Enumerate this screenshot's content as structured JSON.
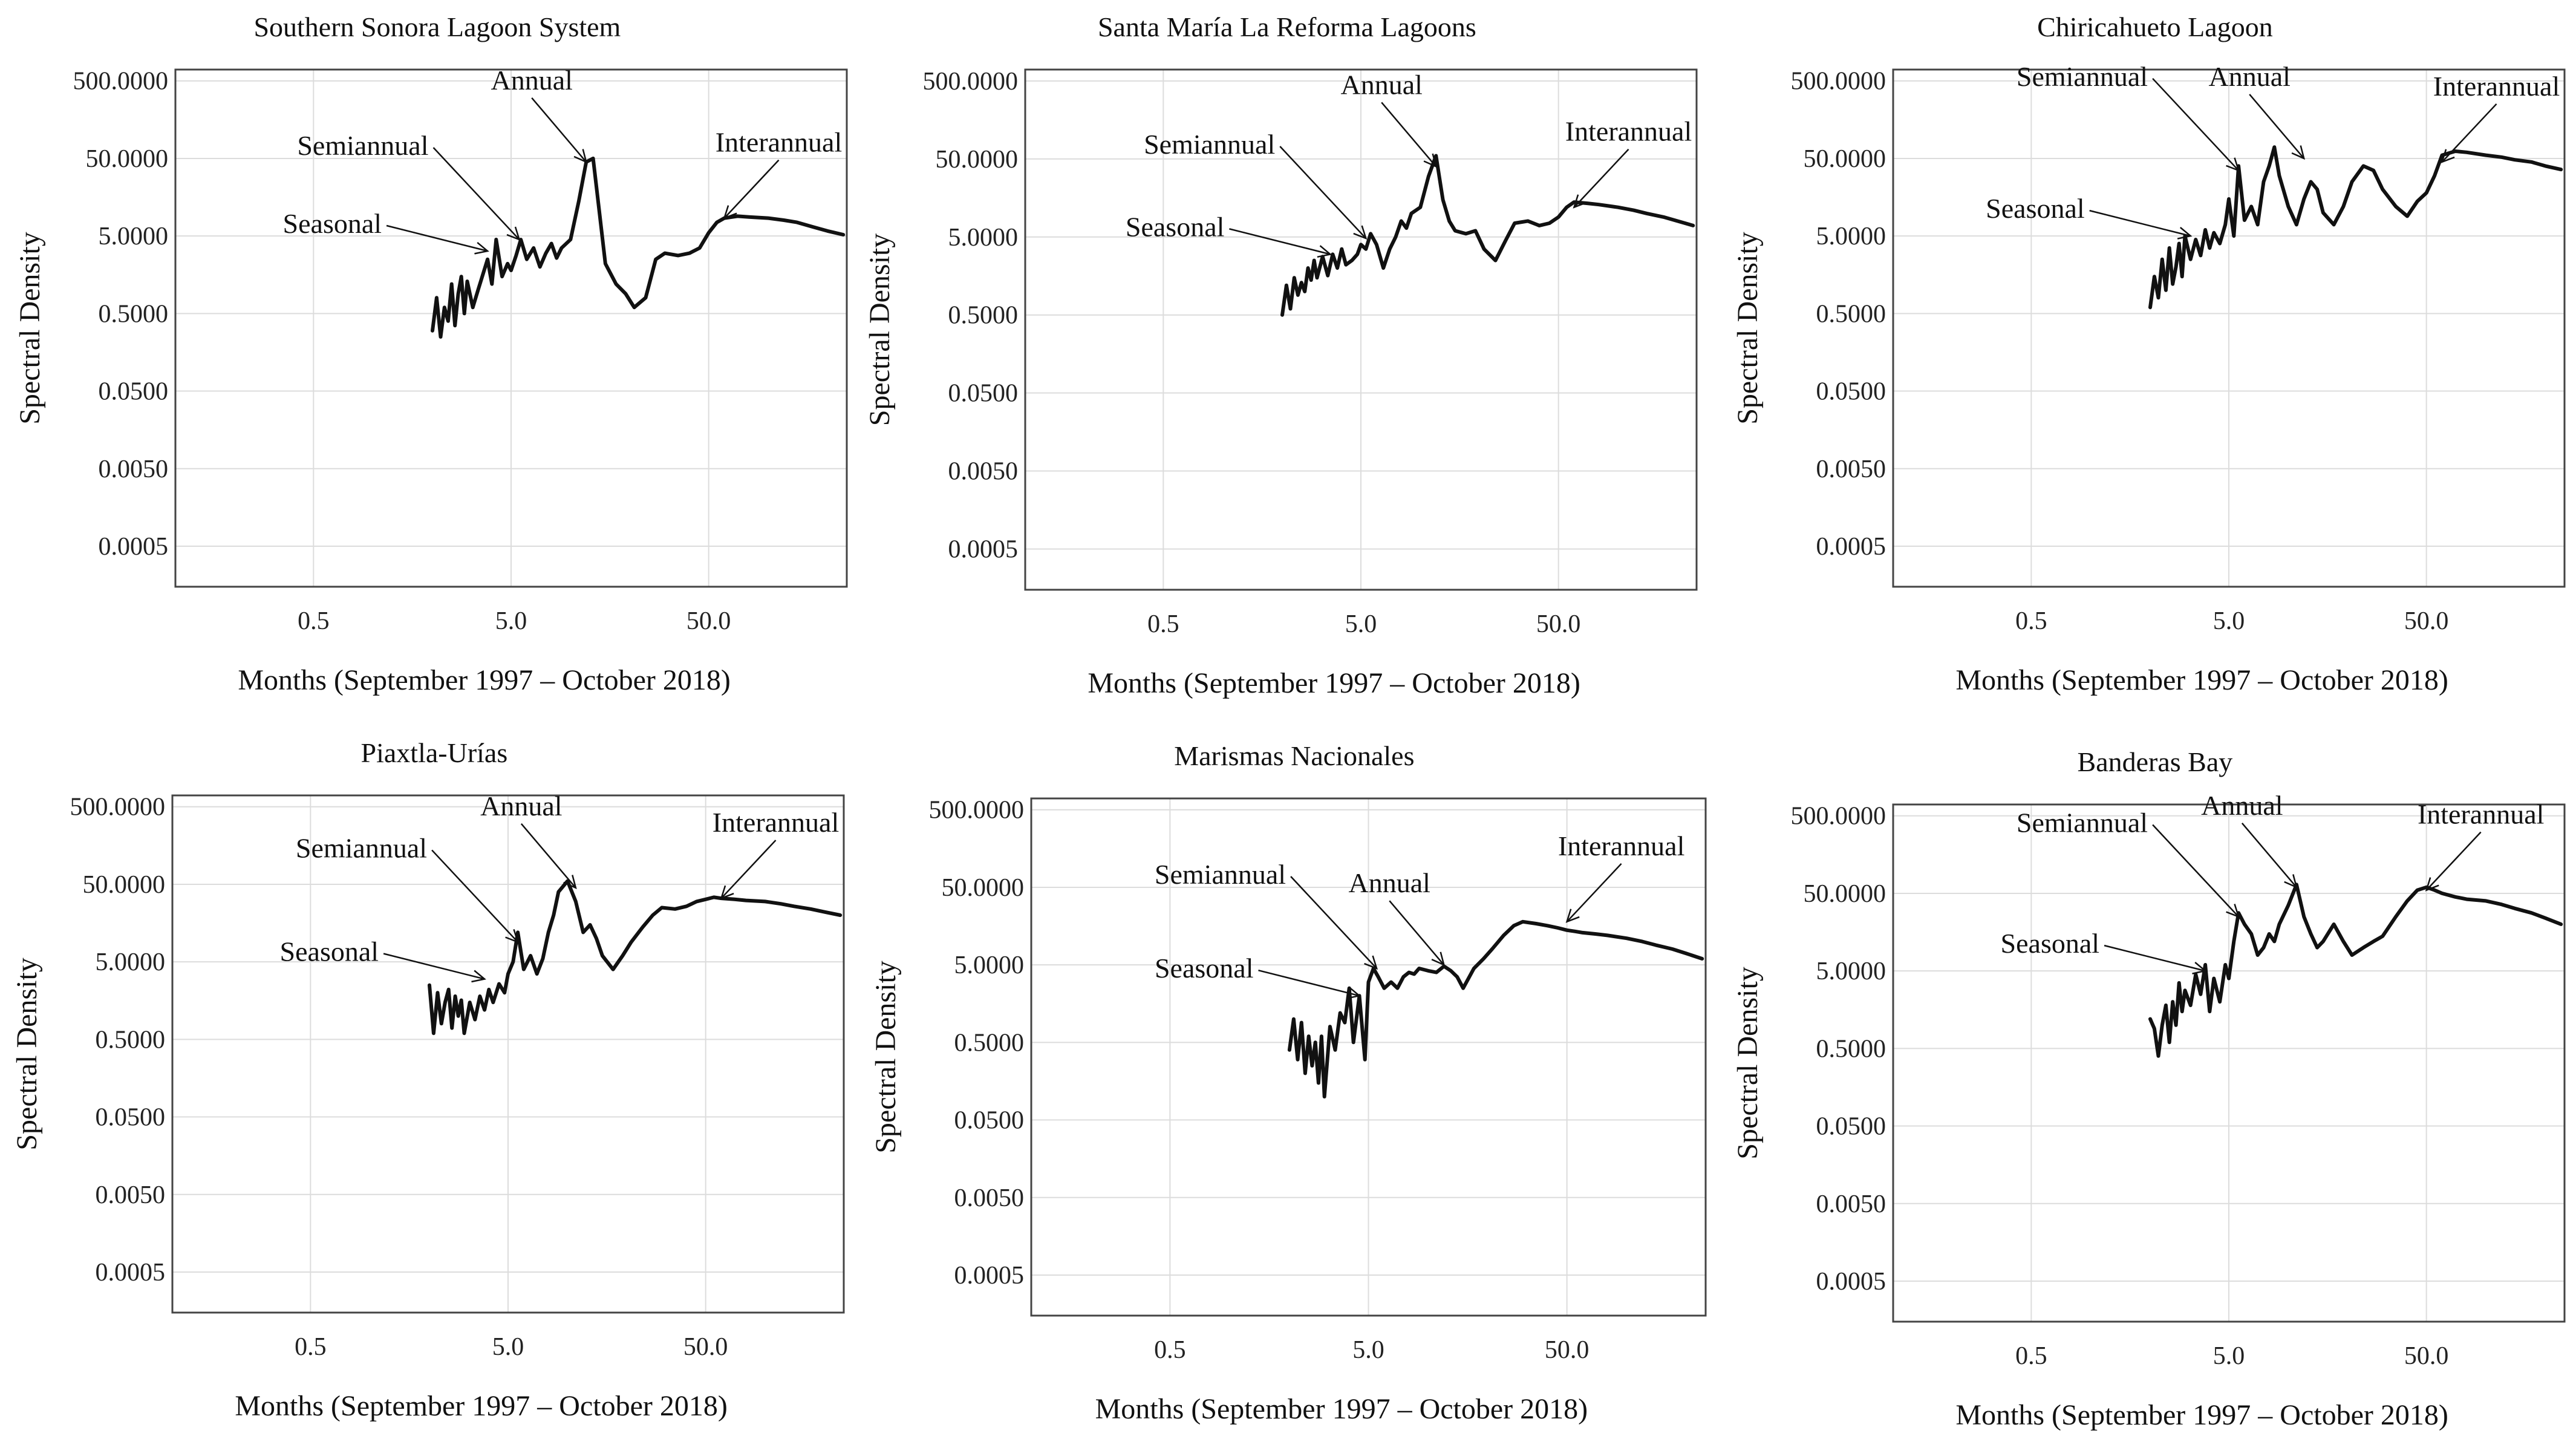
{
  "chart_data": [
    {
      "type": "line",
      "title": "Southern Sonora Lagoon System",
      "xlabel": "Months (September 1997 – October 2018)",
      "ylabel": "Spectral Density",
      "xscale": "log",
      "yscale": "log",
      "xlim": [
        0.1,
        250
      ],
      "ylim": [
        0.00015,
        700
      ],
      "xticks": [
        0.5,
        5.0,
        50.0
      ],
      "xtick_labels": [
        "0.5",
        "5.0",
        "50.0"
      ],
      "yticks": [
        500,
        50,
        5,
        0.5,
        0.05,
        0.005,
        0.0005
      ],
      "ytick_labels": [
        "500.0000",
        "50.0000",
        "5.0000",
        "0.5000",
        "0.0500",
        "0.0050",
        "0.0005"
      ],
      "grid": true,
      "series": [
        {
          "name": "Spectral density",
          "x": [
            2.0,
            2.1,
            2.2,
            2.3,
            2.4,
            2.5,
            2.6,
            2.7,
            2.8,
            2.9,
            3.0,
            3.2,
            3.4,
            3.6,
            3.8,
            4.0,
            4.2,
            4.5,
            4.8,
            5.0,
            5.3,
            5.6,
            6.0,
            6.5,
            7.0,
            7.5,
            8.0,
            8.5,
            9.0,
            10.0,
            11.0,
            12.0,
            13.0,
            14.0,
            15.0,
            17.0,
            19.0,
            21.0,
            24.0,
            27.0,
            30.0,
            35.0,
            40.0,
            45.0,
            50.0,
            55.0,
            60.0,
            70.0,
            80.0,
            100.0,
            120.0,
            140.0,
            170.0,
            200.0,
            240.0
          ],
          "y": [
            0.3,
            0.8,
            0.25,
            0.6,
            0.4,
            1.2,
            0.35,
            0.9,
            1.5,
            0.5,
            1.3,
            0.6,
            1.0,
            1.6,
            2.5,
            1.2,
            4.5,
            1.5,
            2.2,
            1.8,
            2.8,
            4.5,
            2.5,
            3.5,
            2.0,
            3.0,
            4.0,
            2.6,
            3.5,
            4.5,
            14,
            45,
            50,
            10,
            2.2,
            1.2,
            0.9,
            0.6,
            0.8,
            2.5,
            3.0,
            2.8,
            3.0,
            3.5,
            5.5,
            7.5,
            8.5,
            9.0,
            8.8,
            8.5,
            8.0,
            7.5,
            6.5,
            5.8,
            5.2
          ]
        }
      ],
      "annotations": [
        {
          "text": "Seasonal",
          "x": 3.8,
          "y": 3.2
        },
        {
          "text": "Semiannual",
          "x": 5.5,
          "y": 4.5
        },
        {
          "text": "Annual",
          "x": 12.0,
          "y": 45
        },
        {
          "text": "Interannual",
          "x": 60.0,
          "y": 8.5
        }
      ]
    },
    {
      "type": "line",
      "title": "Santa María La Reforma Lagoons",
      "xlabel": "Months (September 1997 – October 2018)",
      "ylabel": "Spectral Density",
      "xscale": "log",
      "yscale": "log",
      "xlim": [
        0.1,
        250
      ],
      "ylim": [
        0.00015,
        700
      ],
      "xticks": [
        0.5,
        5.0,
        50.0
      ],
      "xtick_labels": [
        "0.5",
        "5.0",
        "50.0"
      ],
      "yticks": [
        500,
        50,
        5,
        0.5,
        0.05,
        0.005,
        0.0005
      ],
      "ytick_labels": [
        "500.0000",
        "50.0000",
        "5.0000",
        "0.5000",
        "0.0500",
        "0.0050",
        "0.0005"
      ],
      "grid": true,
      "series": [
        {
          "name": "Spectral density",
          "x": [
            2.0,
            2.1,
            2.2,
            2.3,
            2.4,
            2.5,
            2.6,
            2.7,
            2.8,
            2.9,
            3.0,
            3.2,
            3.4,
            3.6,
            3.8,
            4.0,
            4.2,
            4.5,
            4.8,
            5.0,
            5.3,
            5.6,
            6.0,
            6.5,
            7.0,
            7.5,
            8.0,
            8.5,
            9.0,
            10.0,
            11.0,
            12.0,
            13.0,
            14.0,
            15.0,
            17.0,
            19.0,
            21.0,
            24.0,
            27.0,
            30.0,
            35.0,
            40.0,
            45.0,
            50.0,
            55.0,
            60.0,
            70.0,
            80.0,
            100.0,
            120.0,
            140.0,
            170.0,
            200.0,
            240.0
          ],
          "y": [
            0.5,
            1.2,
            0.6,
            1.5,
            0.9,
            1.3,
            1.0,
            2.0,
            1.4,
            2.5,
            1.5,
            2.8,
            1.6,
            3.0,
            2.0,
            3.5,
            2.2,
            2.5,
            3.0,
            4.0,
            3.5,
            5.5,
            4.0,
            2.0,
            3.5,
            5.0,
            8.0,
            6.5,
            10.0,
            12.0,
            30,
            55,
            15,
            8.0,
            6.0,
            5.5,
            6.0,
            3.5,
            2.5,
            4.5,
            7.5,
            8.0,
            7.0,
            7.5,
            9.0,
            12,
            14,
            13.5,
            13,
            12,
            11,
            10,
            9,
            8,
            7
          ]
        }
      ],
      "annotations": [
        {
          "text": "Seasonal",
          "x": 3.5,
          "y": 3.0
        },
        {
          "text": "Semiannual",
          "x": 5.3,
          "y": 4.8
        },
        {
          "text": "Annual",
          "x": 12.0,
          "y": 40
        },
        {
          "text": "Interannual",
          "x": 60.0,
          "y": 12
        }
      ]
    },
    {
      "type": "line",
      "title": "Chiricahueto Lagoon",
      "xlabel": "Months (September 1997 – October 2018)",
      "ylabel": "Spectral Density",
      "xscale": "log",
      "yscale": "log",
      "xlim": [
        0.1,
        250
      ],
      "ylim": [
        0.00015,
        700
      ],
      "xticks": [
        0.5,
        5.0,
        50.0
      ],
      "xtick_labels": [
        "0.5",
        "5.0",
        "50.0"
      ],
      "yticks": [
        500,
        50,
        5,
        0.5,
        0.05,
        0.005,
        0.0005
      ],
      "ytick_labels": [
        "500.0000",
        "50.0000",
        "5.0000",
        "0.5000",
        "0.0500",
        "0.0050",
        "0.0005"
      ],
      "grid": true,
      "series": [
        {
          "name": "Spectral density",
          "x": [
            2.0,
            2.1,
            2.2,
            2.3,
            2.4,
            2.5,
            2.6,
            2.7,
            2.8,
            2.9,
            3.0,
            3.2,
            3.4,
            3.6,
            3.8,
            4.0,
            4.2,
            4.5,
            4.8,
            5.0,
            5.3,
            5.6,
            6.0,
            6.5,
            7.0,
            7.5,
            8.0,
            8.5,
            9.0,
            10.0,
            11.0,
            12.0,
            13.0,
            14.0,
            15.0,
            17.0,
            19.0,
            21.0,
            24.0,
            27.0,
            30.0,
            35.0,
            40.0,
            45.0,
            50.0,
            55.0,
            60.0,
            70.0,
            80.0,
            100.0,
            120.0,
            140.0,
            170.0,
            200.0,
            240.0
          ],
          "y": [
            0.6,
            1.5,
            0.8,
            2.5,
            1.0,
            3.5,
            1.2,
            2.0,
            4.0,
            1.5,
            5.0,
            2.5,
            4.5,
            2.8,
            6.0,
            3.5,
            5.5,
            4.0,
            7.0,
            15,
            5.0,
            40,
            8.0,
            12,
            7.0,
            25,
            40,
            70,
            30,
            12,
            7,
            15,
            25,
            20,
            10,
            7,
            12,
            25,
            40,
            35,
            20,
            12,
            9,
            14,
            18,
            30,
            55,
            62,
            60,
            55,
            52,
            48,
            45,
            40,
            36
          ]
        }
      ],
      "annotations": [
        {
          "text": "Seasonal",
          "x": 3.2,
          "y": 5.0
        },
        {
          "text": "Semiannual",
          "x": 5.6,
          "y": 35
        },
        {
          "text": "Annual",
          "x": 12.0,
          "y": 50
        },
        {
          "text": "Interannual",
          "x": 60.0,
          "y": 45
        }
      ]
    },
    {
      "type": "line",
      "title": "Piaxtla-Urías",
      "xlabel": "Months (September 1997 – October 2018)",
      "ylabel": "Spectral Density",
      "xscale": "log",
      "yscale": "log",
      "xlim": [
        0.1,
        250
      ],
      "ylim": [
        0.00015,
        700
      ],
      "xticks": [
        0.5,
        5.0,
        50.0
      ],
      "xtick_labels": [
        "0.5",
        "5.0",
        "50.0"
      ],
      "yticks": [
        500,
        50,
        5,
        0.5,
        0.05,
        0.005,
        0.0005
      ],
      "ytick_labels": [
        "500.0000",
        "50.0000",
        "5.0000",
        "0.5000",
        "0.0500",
        "0.0050",
        "0.0005"
      ],
      "grid": true,
      "series": [
        {
          "name": "Spectral density",
          "x": [
            2.0,
            2.1,
            2.2,
            2.3,
            2.4,
            2.5,
            2.6,
            2.7,
            2.8,
            2.9,
            3.0,
            3.2,
            3.4,
            3.6,
            3.8,
            4.0,
            4.2,
            4.5,
            4.8,
            5.0,
            5.3,
            5.6,
            6.0,
            6.5,
            7.0,
            7.5,
            8.0,
            8.5,
            9.0,
            10.0,
            11.0,
            12.0,
            13.0,
            14.0,
            15.0,
            17.0,
            19.0,
            21.0,
            24.0,
            27.0,
            30.0,
            35.0,
            40.0,
            45.0,
            50.0,
            55.0,
            60.0,
            70.0,
            80.0,
            100.0,
            120.0,
            140.0,
            170.0,
            200.0,
            240.0
          ],
          "y": [
            2.5,
            0.6,
            2.0,
            0.8,
            1.5,
            2.2,
            0.7,
            1.8,
            1.0,
            1.6,
            0.6,
            1.5,
            0.9,
            1.8,
            1.2,
            2.2,
            1.5,
            2.6,
            2.0,
            3.5,
            5.0,
            12,
            4.0,
            6.0,
            3.5,
            5.5,
            12,
            20,
            40,
            55,
            30,
            12,
            15,
            10,
            6,
            4,
            6,
            9,
            14,
            20,
            25,
            24,
            26,
            30,
            32,
            34,
            33,
            32,
            31,
            30,
            28,
            26,
            24,
            22,
            20
          ]
        }
      ],
      "annotations": [
        {
          "text": "Seasonal",
          "x": 3.8,
          "y": 3.0
        },
        {
          "text": "Semiannual",
          "x": 5.6,
          "y": 9.0
        },
        {
          "text": "Annual",
          "x": 11.0,
          "y": 45
        },
        {
          "text": "Interannual",
          "x": 60.0,
          "y": 33
        }
      ]
    },
    {
      "type": "line",
      "title": "Marismas Nacionales",
      "xlabel": "Months (September 1997 – October 2018)",
      "ylabel": "Spectral Density",
      "xscale": "log",
      "yscale": "log",
      "xlim": [
        0.1,
        250
      ],
      "ylim": [
        0.00015,
        700
      ],
      "xticks": [
        0.5,
        5.0,
        50.0
      ],
      "xtick_labels": [
        "0.5",
        "5.0",
        "50.0"
      ],
      "yticks": [
        500,
        50,
        5,
        0.5,
        0.05,
        0.005,
        0.0005
      ],
      "ytick_labels": [
        "500.0000",
        "50.0000",
        "5.0000",
        "0.5000",
        "0.0500",
        "0.0050",
        "0.0005"
      ],
      "grid": true,
      "series": [
        {
          "name": "Spectral density",
          "x": [
            2.0,
            2.1,
            2.2,
            2.3,
            2.4,
            2.5,
            2.6,
            2.7,
            2.8,
            2.9,
            3.0,
            3.2,
            3.4,
            3.6,
            3.8,
            4.0,
            4.2,
            4.5,
            4.8,
            5.0,
            5.3,
            5.6,
            6.0,
            6.5,
            7.0,
            7.5,
            8.0,
            8.5,
            9.0,
            10.0,
            11.0,
            12.0,
            13.0,
            14.0,
            15.0,
            17.0,
            19.0,
            21.0,
            24.0,
            27.0,
            30.0,
            35.0,
            40.0,
            45.0,
            50.0,
            55.0,
            60.0,
            70.0,
            80.0,
            100.0,
            120.0,
            140.0,
            170.0,
            200.0,
            240.0
          ],
          "y": [
            0.4,
            1.0,
            0.3,
            0.9,
            0.2,
            0.6,
            0.25,
            0.5,
            0.15,
            0.6,
            0.1,
            0.8,
            0.4,
            1.2,
            0.9,
            2.5,
            0.5,
            2.0,
            0.3,
            3.0,
            4.5,
            3.5,
            2.5,
            3.0,
            2.5,
            3.5,
            4.0,
            3.8,
            4.5,
            4.2,
            4.0,
            4.8,
            4.2,
            3.5,
            2.5,
            4.5,
            6.0,
            8.0,
            12,
            16,
            18,
            17,
            16,
            15,
            14,
            13.5,
            13,
            12.5,
            12,
            11,
            10,
            9,
            8,
            7,
            6
          ]
        }
      ],
      "annotations": [
        {
          "text": "Seasonal",
          "x": 4.5,
          "y": 2.0
        },
        {
          "text": "Semiannual",
          "x": 5.5,
          "y": 4.5
        },
        {
          "text": "Annual",
          "x": 12.0,
          "y": 5.0
        },
        {
          "text": "Interannual",
          "x": 50.0,
          "y": 18
        }
      ]
    },
    {
      "type": "line",
      "title": "Banderas Bay",
      "xlabel": "Months (September 1997 – October 2018)",
      "ylabel": "Spectral Density",
      "xscale": "log",
      "yscale": "log",
      "xlim": [
        0.1,
        250
      ],
      "ylim": [
        0.00015,
        700
      ],
      "xticks": [
        0.5,
        5.0,
        50.0
      ],
      "xtick_labels": [
        "0.5",
        "5.0",
        "50.0"
      ],
      "yticks": [
        500,
        50,
        5,
        0.5,
        0.05,
        0.005,
        0.0005
      ],
      "ytick_labels": [
        "500.0000",
        "50.0000",
        "5.0000",
        "0.5000",
        "0.0500",
        "0.0050",
        "0.0005"
      ],
      "grid": true,
      "series": [
        {
          "name": "Spectral density",
          "x": [
            2.0,
            2.1,
            2.2,
            2.3,
            2.4,
            2.5,
            2.6,
            2.7,
            2.8,
            2.9,
            3.0,
            3.2,
            3.4,
            3.6,
            3.8,
            4.0,
            4.2,
            4.5,
            4.8,
            5.0,
            5.3,
            5.6,
            6.0,
            6.5,
            7.0,
            7.5,
            8.0,
            8.5,
            9.0,
            10.0,
            11.0,
            12.0,
            13.0,
            14.0,
            15.0,
            17.0,
            19.0,
            21.0,
            24.0,
            27.0,
            30.0,
            35.0,
            40.0,
            45.0,
            50.0,
            55.0,
            60.0,
            70.0,
            80.0,
            100.0,
            120.0,
            140.0,
            170.0,
            200.0,
            240.0
          ],
          "y": [
            1.2,
            0.9,
            0.4,
            1.0,
            1.8,
            0.6,
            2.0,
            1.0,
            3.5,
            1.5,
            2.8,
            1.8,
            4.5,
            2.5,
            6.0,
            1.5,
            4.0,
            2.0,
            6.0,
            4.0,
            12,
            28,
            20,
            15,
            8.0,
            10,
            15,
            12,
            20,
            35,
            65,
            25,
            15,
            10,
            12,
            20,
            12,
            8,
            10,
            12,
            14,
            25,
            40,
            55,
            60,
            55,
            50,
            45,
            42,
            40,
            36,
            32,
            28,
            24,
            20
          ]
        }
      ],
      "annotations": [
        {
          "text": "Seasonal",
          "x": 3.8,
          "y": 5.0
        },
        {
          "text": "Semiannual",
          "x": 5.6,
          "y": 25
        },
        {
          "text": "Annual",
          "x": 11.0,
          "y": 60
        },
        {
          "text": "Interannual",
          "x": 50.0,
          "y": 55
        }
      ]
    }
  ]
}
